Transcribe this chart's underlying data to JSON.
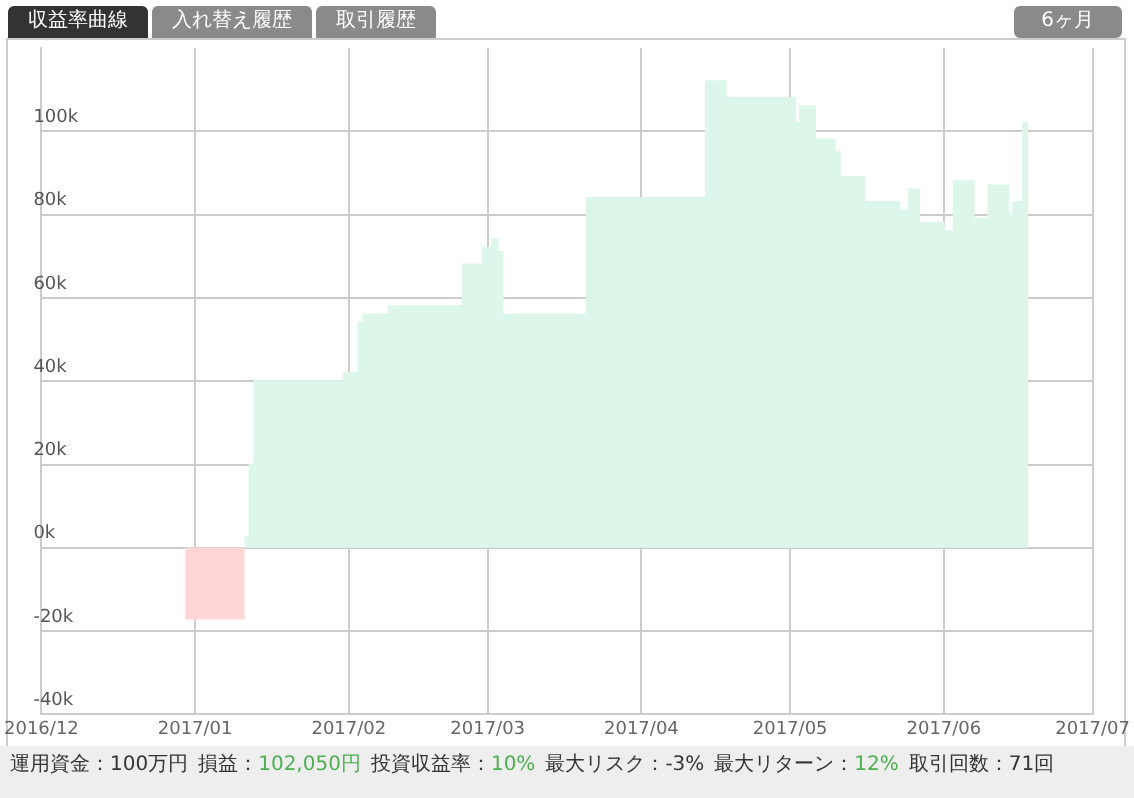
{
  "chart_data": {
    "type": "area",
    "grid": true,
    "legend": false,
    "annotations": [
      "収益率曲線",
      "入れ替え履歴",
      "取引履歴",
      "6ヶ月",
      "運用資金：100万円",
      "損益：102,050円",
      "投資収益率：10%",
      "最大リスク：-3%",
      "最大リターン：12%",
      "取引回数：71回"
    ],
    "xlim": [
      "2016-12-01",
      "2017-07-01"
    ],
    "xticks": [
      {
        "value": "2016-12-01",
        "label": "2016/12"
      },
      {
        "value": "2017-01-01",
        "label": "2017/01"
      },
      {
        "value": "2017-02-01",
        "label": "2017/02"
      },
      {
        "value": "2017-03-01",
        "label": "2017/03"
      },
      {
        "value": "2017-04-01",
        "label": "2017/04"
      },
      {
        "value": "2017-05-01",
        "label": "2017/05"
      },
      {
        "value": "2017-06-01",
        "label": "2017/06"
      },
      {
        "value": "2017-07-01",
        "label": "2017/07"
      }
    ],
    "ylim": [
      -40000,
      120000
    ],
    "yticks": [
      {
        "value": -40000,
        "label": "-40k"
      },
      {
        "value": -20000,
        "label": "-20k"
      },
      {
        "value": 0,
        "label": "0k"
      },
      {
        "value": 20000,
        "label": "20k"
      },
      {
        "value": 40000,
        "label": "40k"
      },
      {
        "value": 60000,
        "label": "60k"
      },
      {
        "value": 80000,
        "label": "80k"
      },
      {
        "value": 100000,
        "label": "100k"
      }
    ],
    "series": [
      {
        "color": "#ffd6d6",
        "x": [
          "2016-12-30",
          "2017-01-11"
        ],
        "values": [
          -17000,
          -17000
        ]
      },
      {
        "color": "#dcf7ea",
        "x": [
          "2017-01-11",
          "2017-01-12",
          "2017-01-12",
          "2017-01-13",
          "2017-01-13",
          "2017-01-31",
          "2017-01-31",
          "2017-02-03",
          "2017-02-03",
          "2017-02-04",
          "2017-02-04",
          "2017-02-09",
          "2017-02-09",
          "2017-02-24",
          "2017-02-24",
          "2017-02-28",
          "2017-02-28",
          "2017-03-02",
          "2017-03-02",
          "2017-03-03",
          "2017-03-03",
          "2017-03-04",
          "2017-03-04",
          "2017-03-21",
          "2017-03-21",
          "2017-04-14",
          "2017-04-14",
          "2017-04-18",
          "2017-04-18",
          "2017-05-02",
          "2017-05-02",
          "2017-05-03",
          "2017-05-03",
          "2017-05-06",
          "2017-05-06",
          "2017-05-10",
          "2017-05-10",
          "2017-05-11",
          "2017-05-11",
          "2017-05-16",
          "2017-05-16",
          "2017-05-23",
          "2017-05-23",
          "2017-05-25",
          "2017-05-25",
          "2017-05-27",
          "2017-05-27",
          "2017-06-01",
          "2017-06-01",
          "2017-06-03",
          "2017-06-03",
          "2017-06-07",
          "2017-06-07",
          "2017-06-10",
          "2017-06-10",
          "2017-06-14",
          "2017-06-14",
          "2017-06-15",
          "2017-06-15",
          "2017-06-17",
          "2017-06-17",
          "2017-06-18"
        ],
        "values": [
          2500,
          2500,
          20000,
          20000,
          40000,
          40000,
          42000,
          42000,
          54000,
          54000,
          56000,
          56000,
          58000,
          58000,
          68000,
          68000,
          72000,
          72000,
          74000,
          74000,
          71000,
          71000,
          56000,
          56000,
          84000,
          84000,
          112000,
          112000,
          108000,
          108000,
          102000,
          102000,
          106000,
          106000,
          98000,
          98000,
          95000,
          95000,
          89000,
          89000,
          83000,
          83000,
          81000,
          81000,
          86000,
          86000,
          78000,
          78000,
          76000,
          76000,
          88000,
          88000,
          79000,
          79000,
          87000,
          87000,
          80000,
          80000,
          83000,
          83000,
          102000,
          102000
        ]
      }
    ]
  }
}
